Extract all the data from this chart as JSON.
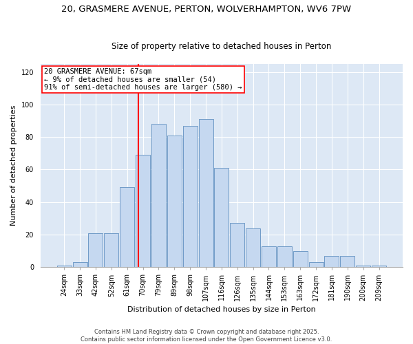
{
  "title_line1": "20, GRASMERE AVENUE, PERTON, WOLVERHAMPTON, WV6 7PW",
  "title_line2": "Size of property relative to detached houses in Perton",
  "xlabel": "Distribution of detached houses by size in Perton",
  "ylabel": "Number of detached properties",
  "bar_labels": [
    "24sqm",
    "33sqm",
    "42sqm",
    "52sqm",
    "61sqm",
    "70sqm",
    "79sqm",
    "89sqm",
    "98sqm",
    "107sqm",
    "116sqm",
    "126sqm",
    "135sqm",
    "144sqm",
    "153sqm",
    "163sqm",
    "172sqm",
    "181sqm",
    "190sqm",
    "200sqm",
    "209sqm"
  ],
  "bar_values": [
    1,
    3,
    21,
    21,
    49,
    69,
    88,
    81,
    87,
    91,
    61,
    27,
    24,
    13,
    13,
    10,
    3,
    7,
    7,
    1,
    1
  ],
  "bar_color": "#c5d8f0",
  "bar_edge_color": "#6090c0",
  "annotation_text": "20 GRASMERE AVENUE: 67sqm\n← 9% of detached houses are smaller (54)\n91% of semi-detached houses are larger (580) →",
  "vline_x": 4.72,
  "vline_color": "red",
  "annotation_box_color": "white",
  "annotation_box_edge": "red",
  "ylim": [
    0,
    125
  ],
  "yticks": [
    0,
    20,
    40,
    60,
    80,
    100,
    120
  ],
  "background_color": "#dde8f5",
  "footer_text": "Contains HM Land Registry data © Crown copyright and database right 2025.\nContains public sector information licensed under the Open Government Licence v3.0.",
  "title_fontsize": 9.5,
  "subtitle_fontsize": 8.5,
  "axis_label_fontsize": 8,
  "tick_fontsize": 7,
  "annotation_fontsize": 7.5,
  "footer_fontsize": 6
}
